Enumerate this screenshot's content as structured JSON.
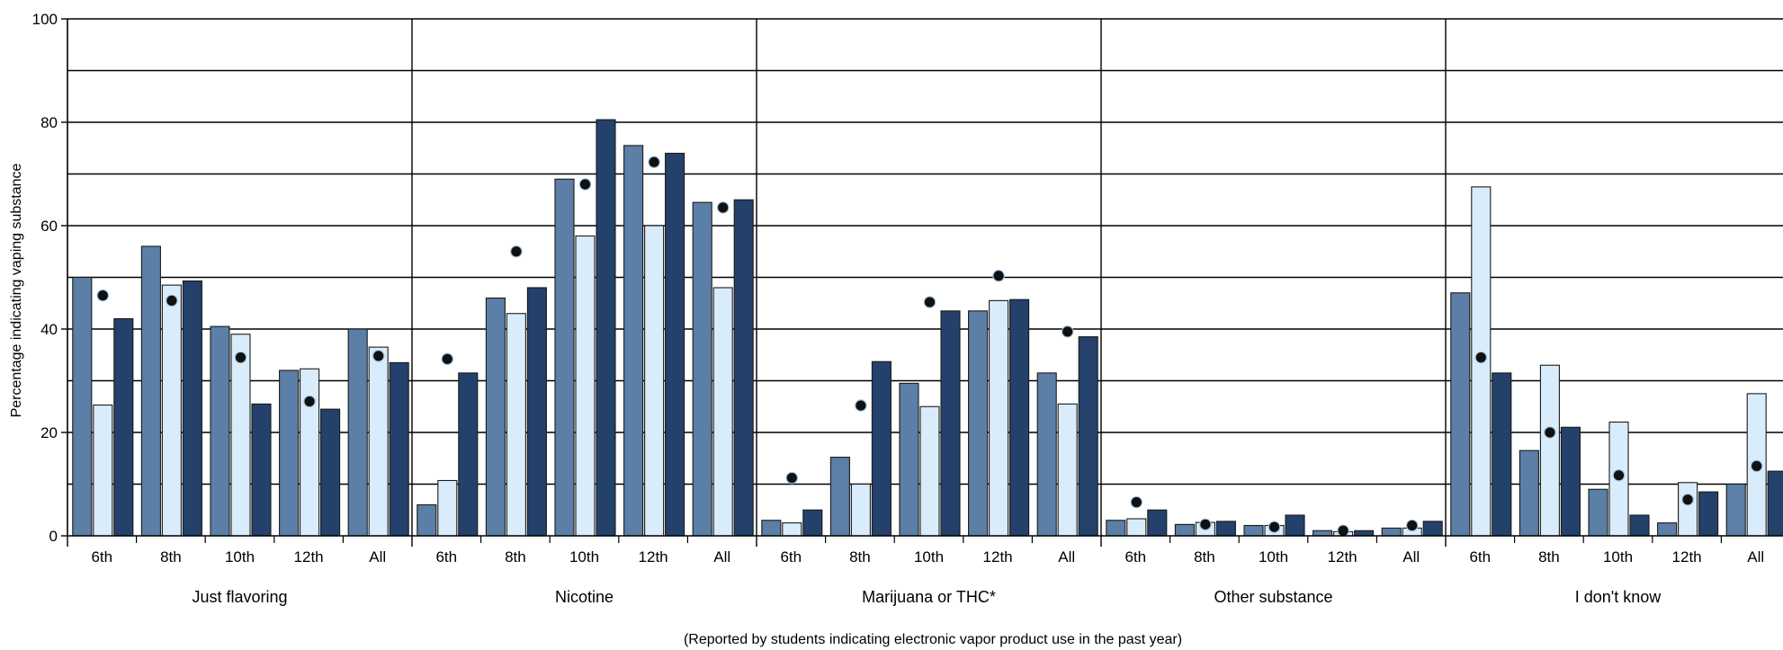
{
  "chart_data": {
    "type": "bar",
    "ylabel": "Percentage indicating vaping substance",
    "footnote": "(Reported by students indicating electronic vapor product use in the past year)",
    "ylim": [
      0,
      100
    ],
    "y_ticks": [
      0,
      20,
      40,
      60,
      80,
      100
    ],
    "grid": true,
    "groups": [
      "Just flavoring",
      "Nicotine",
      "Marijuana or THC*",
      "Other substance",
      "I don't know"
    ],
    "categories": [
      "6th",
      "8th",
      "10th",
      "12th",
      "All"
    ],
    "series_colors": [
      "#5b7fa6",
      "#d9ecfb",
      "#23416b"
    ],
    "marker_color": "#111111",
    "series": [
      {
        "values": [
          [
            50,
            56,
            40.5,
            32,
            40
          ],
          [
            6,
            46,
            69,
            75.5,
            64.5
          ],
          [
            3,
            15.2,
            29.5,
            43.5,
            31.5
          ],
          [
            3,
            2.2,
            2,
            1,
            1.5
          ],
          [
            47,
            16.5,
            9,
            2.5,
            10
          ]
        ]
      },
      {
        "values": [
          [
            25.3,
            48.5,
            39,
            32.3,
            36.5
          ],
          [
            10.7,
            43,
            58,
            60,
            48
          ],
          [
            2.5,
            10,
            25,
            45.5,
            25.5
          ],
          [
            3.3,
            2.6,
            2,
            0.8,
            1.5
          ],
          [
            67.5,
            33,
            22,
            10.3,
            27.5
          ]
        ]
      },
      {
        "values": [
          [
            42,
            49.3,
            25.5,
            24.5,
            33.5
          ],
          [
            31.5,
            48,
            80.5,
            74,
            65
          ],
          [
            5,
            33.7,
            43.5,
            45.7,
            38.5
          ],
          [
            5,
            2.8,
            4,
            1,
            2.8
          ],
          [
            31.5,
            21,
            4,
            8.5,
            12.5
          ]
        ]
      }
    ],
    "markers": [
      [
        46.5,
        45.5,
        34.5,
        26,
        34.8
      ],
      [
        34.2,
        55,
        68,
        72.3,
        63.5
      ],
      [
        11.2,
        25.2,
        45.2,
        50.3,
        39.5
      ],
      [
        6.5,
        2.2,
        1.7,
        1,
        2
      ]
    ],
    "markers_last_group": [
      34.5,
      20,
      11.7,
      7,
      13.5
    ]
  }
}
